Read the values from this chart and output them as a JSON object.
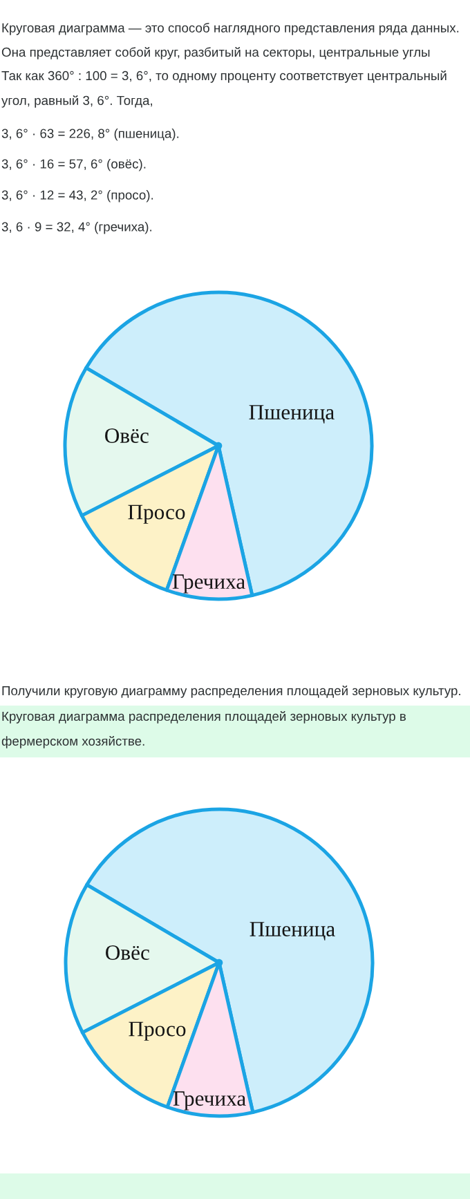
{
  "chart_data": [
    {
      "type": "pie",
      "categories": [
        "Пшеница",
        "Овёс",
        "Просо",
        "Гречиха"
      ],
      "values": [
        63,
        16,
        12,
        9
      ],
      "colors": [
        "#cdeefb",
        "#e5f8ee",
        "#fdf2c7",
        "#fde0ef"
      ],
      "annotations": [
        "Круговая диаграмма — это способ наглядного представления ряда данных.",
        "Она представляет собой круг, разбитый на секторы, центральные углы",
        "Так как 360° : 100 = 3, 6°, то одному проценту соответствует центральный угол, равный 3, 6°. Тогда,",
        "3, 6° · 63 = 226, 8° (пшеница).",
        "3, 6° · 16 = 57, 6° (овёс).",
        "3, 6° · 12 = 43, 2° (просо).",
        "3, 6 · 9 = 32, 4° (гречиха).",
        "Получили круговую диаграмму распределения площадей зерновых культур."
      ]
    },
    {
      "type": "pie",
      "title": "Круговая диаграмма распределения площадей зерновых культур в фермерском хозяйстве.",
      "categories": [
        "Пшеница",
        "Овёс",
        "Просо",
        "Гречиха"
      ],
      "values": [
        63,
        16,
        12,
        9
      ],
      "colors": [
        "#cdeefb",
        "#e5f8ee",
        "#fdf2c7",
        "#fde0ef"
      ]
    }
  ]
}
